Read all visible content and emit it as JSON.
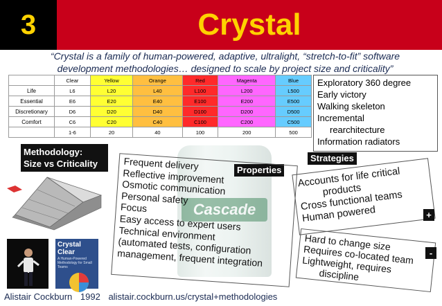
{
  "header": {
    "slide_number": "3",
    "title": "Crystal"
  },
  "quote": {
    "line1": "“Crystal is a family of human-powered, adaptive, ultralight, “stretch-to-fit” software",
    "line2": "development methodologies… designed to scale by project size and criticality”"
  },
  "table": {
    "columns": [
      "Clear",
      "Yellow",
      "Orange",
      "Red",
      "Magenta",
      "Blue"
    ],
    "rows": [
      {
        "label": "Life",
        "cells": [
          "L6",
          "L20",
          "L40",
          "L100",
          "L200",
          "L500"
        ]
      },
      {
        "label": "Essential",
        "cells": [
          "E6",
          "E20",
          "E40",
          "E100",
          "E200",
          "E500"
        ]
      },
      {
        "label": "Discretionary",
        "cells": [
          "D6",
          "D20",
          "D40",
          "D100",
          "D200",
          "D500"
        ]
      },
      {
        "label": "Comfort",
        "cells": [
          "C6",
          "C20",
          "C40",
          "C100",
          "C200",
          "C500"
        ]
      },
      {
        "label": "",
        "cells": [
          "1-6",
          "20",
          "40",
          "100",
          "200",
          "500"
        ]
      }
    ],
    "colors": [
      "#ffffff",
      "#ffff33",
      "#ffbf40",
      "#ff2a2a",
      "#ff66ff",
      "#66ccff"
    ]
  },
  "strategies_list": [
    "Exploratory 360 degree",
    "Early victory",
    "Walking skeleton",
    "Incremental",
    "rearchitecture",
    "Information radiators"
  ],
  "labels": {
    "methodology": [
      "Methodology:",
      "Size vs Criticality"
    ],
    "properties": "Properties",
    "strategies": "Strategies",
    "plus": "+",
    "minus": "-"
  },
  "properties_list": [
    "Frequent delivery",
    "Reflective improvement",
    "Osmotic communication",
    "Personal safety",
    "Focus",
    "Easy access to expert users",
    "Technical environment",
    "(automated tests, configuration",
    "management, frequent integration"
  ],
  "pros": [
    "Accounts for life critical",
    "products",
    "Cross functional teams",
    "Human powered"
  ],
  "cons": [
    "Hard to change size",
    "Requires co-located team",
    "Lightweight, requires",
    "discipline"
  ],
  "book": {
    "title": "Crystal Clear",
    "subtitle": "A Human-Powered Methodology for Small Teams"
  },
  "photo_label": "Cascade",
  "footer": {
    "author": "Alistair Cockburn",
    "year": "1992",
    "url": "alistair.cockburn.us/crystal+methodologies"
  },
  "colors": {
    "header_red": "#c8001a",
    "title_yellow": "#ffd200",
    "quote_navy": "#1a2a52"
  }
}
